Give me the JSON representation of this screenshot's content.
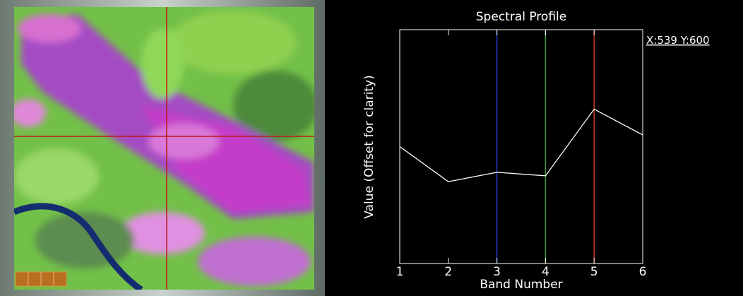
{
  "chart_data": {
    "type": "line",
    "title": "Spectral Profile",
    "x_label": "Band Number",
    "y_label": "Value (Offset for clarity)",
    "annotation": "X:539 Y:600",
    "x": [
      1,
      2,
      3,
      4,
      5,
      6
    ],
    "values": [
      50,
      35,
      39,
      37.5,
      66,
      55
    ],
    "color": "#ffffff",
    "xlim": [
      1,
      6
    ],
    "xticks": [
      1,
      2,
      3,
      4,
      5,
      6
    ],
    "ylim": [
      0,
      100
    ],
    "band_markers": [
      {
        "x": 3,
        "color": "#2a3cc8"
      },
      {
        "x": 4,
        "color": "#3c9c3c"
      },
      {
        "x": 5,
        "color": "#c83c28"
      }
    ]
  }
}
